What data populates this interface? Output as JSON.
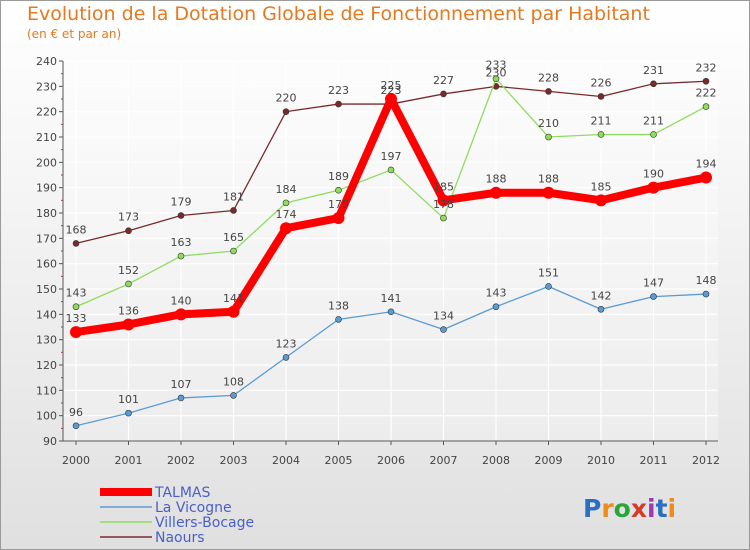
{
  "header": {
    "title": "Evolution de la Dotation Globale de Fonctionnement par Habitant",
    "subtitle": "(en € et par an)"
  },
  "logo": {
    "text": "Proxiti",
    "colors": [
      "#2a6fc0",
      "#f08a1c",
      "#2aa53a",
      "#d63b2a",
      "#9c3bb0"
    ]
  },
  "chart_data": {
    "type": "line",
    "title": "Evolution de la Dotation Globale de Fonctionnement par Habitant",
    "subtitle": "(en € et par an)",
    "xlabel": "",
    "ylabel": "",
    "ylim": [
      90,
      240
    ],
    "yticks": [
      90,
      100,
      110,
      120,
      130,
      140,
      150,
      160,
      170,
      180,
      190,
      200,
      210,
      220,
      230,
      240
    ],
    "x": [
      "2000",
      "2001",
      "2002",
      "2003",
      "2004",
      "2005",
      "2006",
      "2007",
      "2008",
      "2009",
      "2010",
      "2011",
      "2012"
    ],
    "grid": true,
    "legend_position": "bottom-left",
    "series": [
      {
        "name": "TALMAS",
        "values": [
          133,
          136,
          140,
          141,
          174,
          178,
          225,
          185,
          188,
          188,
          185,
          190,
          194
        ],
        "color": "#ff0000",
        "width": 8
      },
      {
        "name": "La Vicogne",
        "values": [
          96,
          101,
          107,
          108,
          123,
          138,
          141,
          134,
          143,
          151,
          142,
          147,
          148
        ],
        "color": "#5b9bd5",
        "width": 1.3
      },
      {
        "name": "Villers-Bocage",
        "values": [
          143,
          152,
          163,
          165,
          184,
          189,
          197,
          178,
          233,
          210,
          211,
          211,
          222
        ],
        "color": "#8fdc5c",
        "width": 1.3
      },
      {
        "name": "Naours",
        "values": [
          168,
          173,
          179,
          181,
          220,
          223,
          223,
          227,
          230,
          228,
          226,
          231,
          232
        ],
        "color": "#7b2a2a",
        "width": 1.3
      }
    ]
  }
}
